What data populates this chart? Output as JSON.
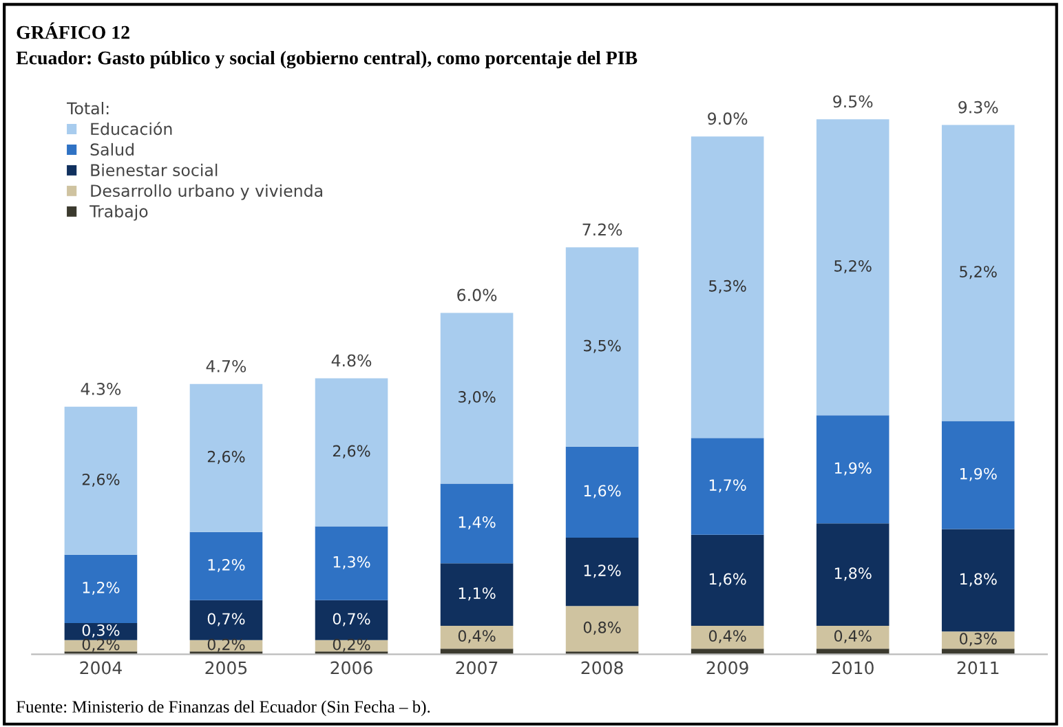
{
  "chart_data": {
    "type": "bar",
    "stacked": true,
    "title": "GRÁFICO 12",
    "subtitle": "Ecuador: Gasto público y social (gobierno central), como porcentaje del PIB",
    "legend_title": "Total:",
    "categories": [
      "2004",
      "2005",
      "2006",
      "2007",
      "2008",
      "2009",
      "2010",
      "2011"
    ],
    "series": [
      {
        "name": "Trabajo",
        "color": "#3b3a2e",
        "values": [
          0.05,
          0.05,
          0.05,
          0.1,
          0.05,
          0.1,
          0.1,
          0.1
        ],
        "value_labels": [
          null,
          null,
          null,
          null,
          null,
          null,
          null,
          null
        ]
      },
      {
        "name": "Desarrollo urbano y vivienda",
        "color": "#cfc3a0",
        "values": [
          0.2,
          0.2,
          0.2,
          0.4,
          0.8,
          0.4,
          0.4,
          0.3
        ],
        "value_labels": [
          "0,2%",
          "0,2%",
          "0,2%",
          "0,4%",
          "0,8%",
          "0,4%",
          "0,4%",
          "0,3%"
        ]
      },
      {
        "name": "Bienestar social",
        "color": "#10305e",
        "values": [
          0.3,
          0.7,
          0.7,
          1.1,
          1.2,
          1.6,
          1.8,
          1.8
        ],
        "value_labels": [
          "0,3%",
          "0,7%",
          "0,7%",
          "1,1%",
          "1,2%",
          "1,6%",
          "1,8%",
          "1,8%"
        ]
      },
      {
        "name": "Salud",
        "color": "#2f72c4",
        "values": [
          1.2,
          1.2,
          1.3,
          1.4,
          1.6,
          1.7,
          1.9,
          1.9
        ],
        "value_labels": [
          "1,2%",
          "1,2%",
          "1,3%",
          "1,4%",
          "1,6%",
          "1,7%",
          "1,9%",
          "1,9%"
        ]
      },
      {
        "name": "Educación",
        "color": "#a8ccee",
        "values": [
          2.6,
          2.6,
          2.6,
          3.0,
          3.5,
          5.3,
          5.2,
          5.2
        ],
        "value_labels": [
          "2,6%",
          "2,6%",
          "2,6%",
          "3,0%",
          "3,5%",
          "5,3%",
          "5,2%",
          "5,2%"
        ]
      }
    ],
    "totals": [
      "4.3%",
      "4.7%",
      "4.8%",
      "6.0%",
      "7.2%",
      "9.0%",
      "9.5%",
      "9.3%"
    ],
    "legend": "top left",
    "grid": false,
    "annotations": [
      "Fuente: Ministerio de Finanzas del Ecuador (Sin Fecha – b)."
    ]
  }
}
